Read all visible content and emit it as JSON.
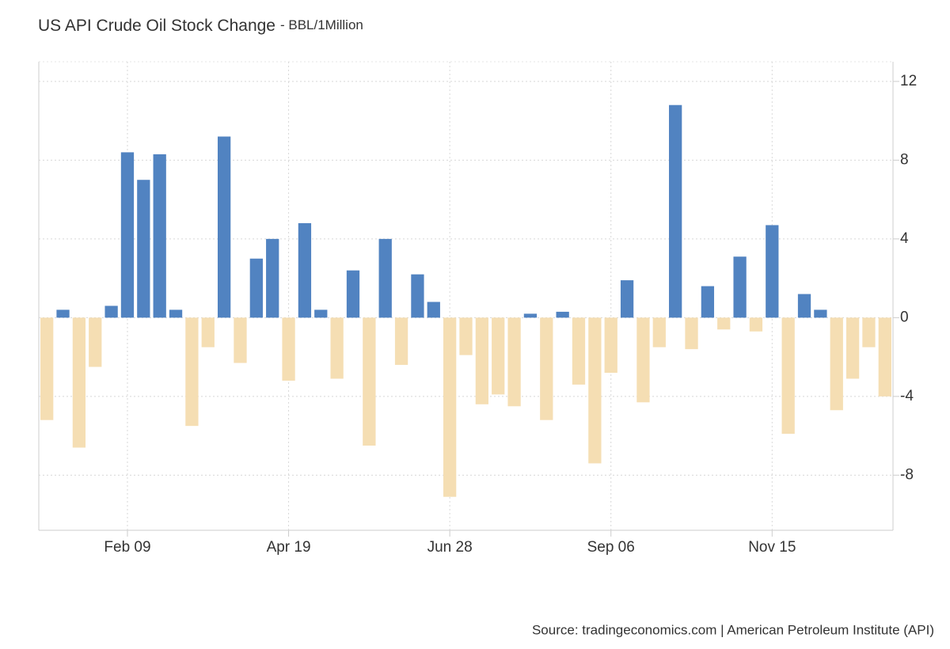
{
  "chart_data": {
    "type": "bar",
    "title": "US API Crude Oil Stock Change",
    "subtitle": "- BBL/1Million",
    "source": "Source: tradingeconomics.com | American Petroleum Institute (API)",
    "categories": [
      null,
      null,
      null,
      null,
      null,
      "Feb 09",
      null,
      null,
      null,
      null,
      null,
      null,
      null,
      null,
      null,
      "Apr 19",
      null,
      null,
      null,
      null,
      null,
      null,
      null,
      null,
      null,
      "Jun 28",
      null,
      null,
      null,
      null,
      null,
      null,
      null,
      null,
      null,
      "Sep 06",
      null,
      null,
      null,
      null,
      null,
      null,
      null,
      null,
      null,
      "Nov 15",
      null,
      null,
      null,
      null,
      null,
      null,
      null
    ],
    "values": [
      -5.2,
      0.4,
      -6.6,
      -2.5,
      0.6,
      8.4,
      7.0,
      8.3,
      0.4,
      -5.5,
      -1.5,
      9.2,
      -2.3,
      3.0,
      4.0,
      -3.2,
      4.8,
      0.4,
      -3.1,
      2.4,
      -6.5,
      4.0,
      -2.4,
      2.2,
      0.8,
      -9.1,
      -1.9,
      -4.4,
      -3.9,
      -4.5,
      0.2,
      -5.2,
      0.3,
      -3.4,
      -7.4,
      -2.8,
      1.9,
      -4.3,
      -1.5,
      10.8,
      -1.6,
      1.6,
      -0.6,
      3.1,
      -0.7,
      4.7,
      -5.9,
      1.2,
      0.4,
      -4.7,
      -3.1,
      -1.5,
      -4.0
    ],
    "positive_color": "#5183c1",
    "negative_color": "#f5deb3",
    "ylim": [
      -10.8,
      13
    ],
    "yticks": [
      -8,
      -4,
      0,
      4,
      8,
      12
    ],
    "grid": true
  }
}
